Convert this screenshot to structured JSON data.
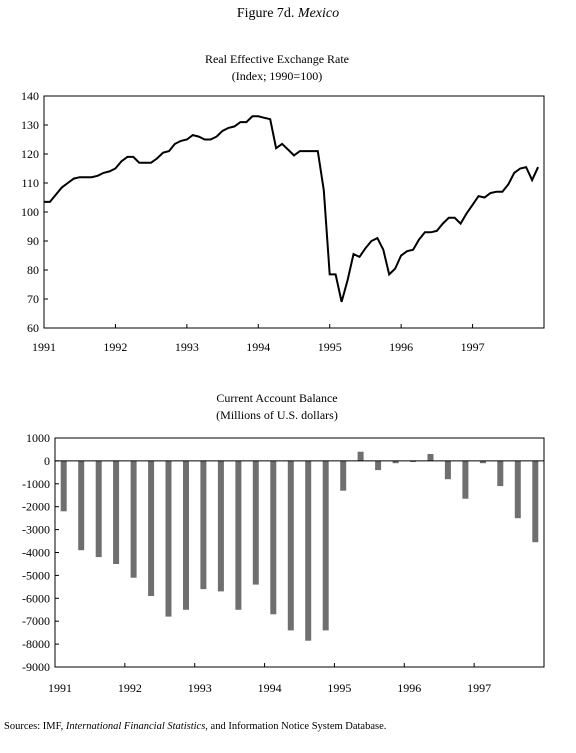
{
  "figure": {
    "label": "Figure 7d.",
    "country": "Mexico"
  },
  "source": {
    "prefix": "Sources: IMF,",
    "publication": "International Financial Statistics",
    "suffix": ", and Information Notice System Database."
  },
  "chart_data": [
    {
      "type": "line",
      "title": "Real Effective Exchange Rate",
      "subtitle": "(Index; 1990=100)",
      "ylim": [
        60,
        140
      ],
      "yticks": [
        60,
        70,
        80,
        90,
        100,
        110,
        120,
        130,
        140
      ],
      "xlim": [
        1991,
        1998
      ],
      "xticks": [
        "1991",
        "1992",
        "1993",
        "1994",
        "1995",
        "1996",
        "1997"
      ],
      "grid": false,
      "series": [
        {
          "x": [
            1991.0,
            1991.083,
            1991.167,
            1991.25,
            1991.333,
            1991.417,
            1991.5,
            1991.583,
            1991.667,
            1991.75,
            1991.833,
            1991.917,
            1992.0,
            1992.083,
            1992.167,
            1992.25,
            1992.333,
            1992.417,
            1992.5,
            1992.583,
            1992.667,
            1992.75,
            1992.833,
            1992.917,
            1993.0,
            1993.083,
            1993.167,
            1993.25,
            1993.333,
            1993.417,
            1993.5,
            1993.583,
            1993.667,
            1993.75,
            1993.833,
            1993.917,
            1994.0,
            1994.083,
            1994.167,
            1994.25,
            1994.333,
            1994.417,
            1994.5,
            1994.583,
            1994.667,
            1994.75,
            1994.833,
            1994.917,
            1995.0,
            1995.083,
            1995.167,
            1995.25,
            1995.333,
            1995.417,
            1995.5,
            1995.583,
            1995.667,
            1995.75,
            1995.833,
            1995.917,
            1996.0,
            1996.083,
            1996.167,
            1996.25,
            1996.333,
            1996.417,
            1996.5,
            1996.583,
            1996.667,
            1996.75,
            1996.833,
            1996.917,
            1997.0,
            1997.083,
            1997.167,
            1997.25,
            1997.333,
            1997.417,
            1997.5,
            1997.583,
            1997.667,
            1997.75,
            1997.833,
            1997.917
          ],
          "y": [
            103.5,
            103.5,
            106,
            108.5,
            110,
            111.5,
            112,
            112,
            112,
            112.5,
            113.5,
            114,
            115,
            117.5,
            119,
            119,
            117,
            117,
            117,
            118.5,
            120.5,
            121,
            123.5,
            124.5,
            125,
            126.5,
            126,
            125,
            125,
            126,
            128,
            129,
            129.5,
            131,
            131,
            133,
            133,
            132.5,
            132,
            122,
            123.5,
            121.5,
            119.5,
            121,
            121,
            121,
            121,
            107.5,
            78.5,
            78.5,
            69,
            76.5,
            85.5,
            84.5,
            87.5,
            90,
            91,
            87,
            78.5,
            80.5,
            85,
            86.5,
            87,
            90.5,
            93,
            93,
            93.5,
            96,
            98,
            98,
            96,
            99.5,
            102.5,
            105.5,
            105,
            106.5,
            107,
            107,
            109.5,
            113.5,
            115,
            115.5,
            111,
            115.5
          ]
        }
      ]
    },
    {
      "type": "bar",
      "title": "Current Account Balance",
      "subtitle": "(Millions of U.S. dollars)",
      "ylim": [
        -9000,
        1000
      ],
      "yticks": [
        1000,
        0,
        -1000,
        -2000,
        -3000,
        -4000,
        -5000,
        -6000,
        -7000,
        -8000,
        -9000
      ],
      "xlim": [
        1991,
        1998
      ],
      "xticks": [
        "1991",
        "1992",
        "1993",
        "1994",
        "1995",
        "1996",
        "1997"
      ],
      "categories": [
        "1991 Q1",
        "1991 Q2",
        "1991 Q3",
        "1991 Q4",
        "1992 Q1",
        "1992 Q2",
        "1992 Q3",
        "1992 Q4",
        "1993 Q1",
        "1993 Q2",
        "1993 Q3",
        "1993 Q4",
        "1994 Q1",
        "1994 Q2",
        "1994 Q3",
        "1994 Q4",
        "1995 Q1",
        "1995 Q2",
        "1995 Q3",
        "1995 Q4",
        "1996 Q1",
        "1996 Q2",
        "1996 Q3",
        "1996 Q4",
        "1997 Q1",
        "1997 Q2",
        "1997 Q3",
        "1997 Q4"
      ],
      "values": [
        -2200,
        -3900,
        -4200,
        -4500,
        -5100,
        -5900,
        -6800,
        -6500,
        -5600,
        -5700,
        -6500,
        -5400,
        -6700,
        -7400,
        -7850,
        -7400,
        -1300,
        400,
        -400,
        -100,
        -50,
        300,
        -800,
        -1650,
        -100,
        -1100,
        -2500,
        -3550
      ],
      "grid": false
    }
  ]
}
